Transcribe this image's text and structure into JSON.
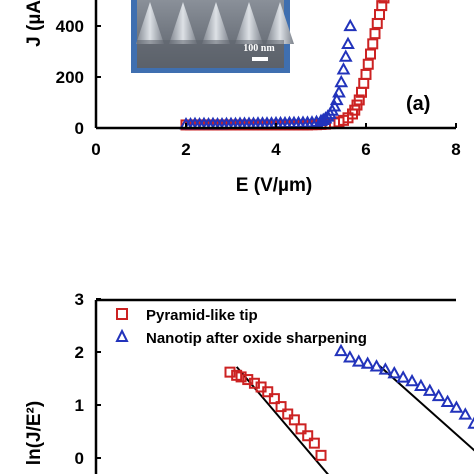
{
  "chart_data": [
    {
      "type": "scatter",
      "panel_label": "(a)",
      "xlabel": "E (V/µm)",
      "ylabel_visible": "J (µA",
      "xlim": [
        0,
        8
      ],
      "ylim": [
        0,
        600
      ],
      "xticks": [
        "0",
        "2",
        "4",
        "6",
        "8"
      ],
      "yticks": [
        "0",
        "200",
        "400"
      ],
      "grid": false,
      "inset": {
        "scale_bar_label": "100 nm"
      },
      "series": [
        {
          "marker": "square",
          "color": "#cc2222",
          "x": [
            2.0,
            2.1,
            2.2,
            2.3,
            2.4,
            2.5,
            2.6,
            2.7,
            2.8,
            2.9,
            3.0,
            3.1,
            3.2,
            3.3,
            3.4,
            3.5,
            3.6,
            3.7,
            3.8,
            3.9,
            4.0,
            4.1,
            4.2,
            4.3,
            4.4,
            4.5,
            4.6,
            4.7,
            4.8,
            4.9,
            5.0,
            5.1,
            5.2,
            5.3,
            5.4,
            5.5,
            5.6,
            5.7,
            5.75,
            5.8,
            5.85,
            5.9,
            5.95,
            6.0,
            6.05,
            6.1,
            6.15,
            6.2,
            6.25,
            6.3,
            6.35,
            6.4,
            6.5
          ],
          "y": [
            12,
            12,
            12,
            12,
            12,
            12,
            12,
            12,
            12,
            12,
            12,
            12,
            12,
            12,
            12,
            12,
            12,
            12,
            12,
            12,
            12,
            12,
            12,
            12,
            12,
            12,
            12,
            12,
            13,
            13,
            14,
            15,
            17,
            20,
            24,
            30,
            40,
            55,
            70,
            90,
            110,
            140,
            175,
            210,
            250,
            290,
            330,
            370,
            410,
            445,
            480,
            510,
            540
          ]
        },
        {
          "marker": "triangle",
          "color": "#2233bb",
          "x": [
            2.0,
            2.1,
            2.2,
            2.3,
            2.4,
            2.5,
            2.6,
            2.7,
            2.8,
            2.9,
            3.0,
            3.1,
            3.2,
            3.3,
            3.4,
            3.5,
            3.6,
            3.7,
            3.8,
            3.9,
            4.0,
            4.1,
            4.2,
            4.3,
            4.4,
            4.5,
            4.6,
            4.7,
            4.8,
            4.9,
            5.0,
            5.05,
            5.1,
            5.15,
            5.2,
            5.25,
            5.3,
            5.35,
            5.4,
            5.45,
            5.5,
            5.55,
            5.6,
            5.65
          ],
          "y": [
            15,
            15,
            16,
            15,
            16,
            15,
            16,
            15,
            15,
            16,
            16,
            16,
            17,
            17,
            17,
            17,
            18,
            18,
            18,
            18,
            19,
            19,
            19,
            20,
            20,
            20,
            21,
            21,
            22,
            24,
            28,
            32,
            38,
            45,
            55,
            68,
            85,
            110,
            140,
            180,
            230,
            280,
            330,
            400
          ]
        }
      ]
    },
    {
      "type": "scatter",
      "ylabel": "ln(J/E²)",
      "ylim": [
        -0.5,
        3
      ],
      "yticks": [
        "0",
        "1",
        "2",
        "3"
      ],
      "grid": false,
      "legend_position": "top-left",
      "series": [
        {
          "name": "Pyramid-like tip",
          "marker": "square",
          "color": "#cc2222",
          "x": [
            0.23,
            0.2315,
            0.2325,
            0.234,
            0.2355,
            0.237,
            0.2385,
            0.24,
            0.2415,
            0.243,
            0.2445,
            0.246,
            0.2475,
            0.249,
            0.2505
          ],
          "y": [
            1.62,
            1.56,
            1.53,
            1.48,
            1.41,
            1.34,
            1.25,
            1.12,
            0.97,
            0.83,
            0.72,
            0.55,
            0.42,
            0.28,
            0.05
          ]
        },
        {
          "name": "Nanotip after oxide sharpening",
          "marker": "triangle",
          "color": "#2233bb",
          "x": [
            0.255,
            0.257,
            0.259,
            0.261,
            0.263,
            0.265,
            0.267,
            0.269,
            0.271,
            0.273,
            0.275,
            0.277,
            0.279,
            0.281,
            0.283,
            0.285,
            0.287,
            0.289,
            0.291
          ],
          "y": [
            2.02,
            1.9,
            1.82,
            1.78,
            1.73,
            1.67,
            1.6,
            1.52,
            1.45,
            1.36,
            1.27,
            1.17,
            1.06,
            0.95,
            0.82,
            0.65,
            0.5,
            0.3,
            -0.05
          ]
        }
      ],
      "fit_lines": [
        {
          "color": "#000000",
          "x": [
            0.2315,
            0.2535
          ],
          "y": [
            1.72,
            -0.45
          ]
        },
        {
          "color": "#000000",
          "x": [
            0.2635,
            0.293
          ],
          "y": [
            1.75,
            -0.45
          ]
        }
      ]
    }
  ]
}
